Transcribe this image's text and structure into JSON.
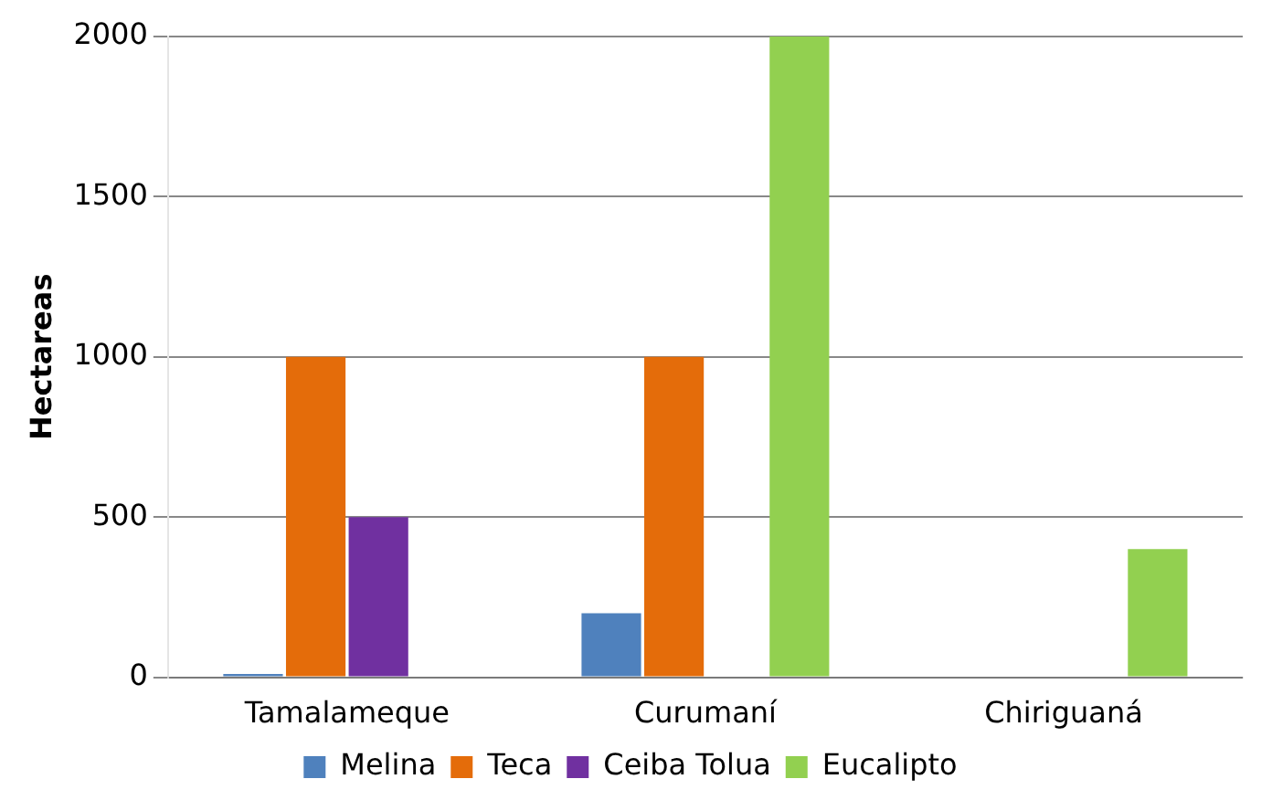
{
  "chart_data": {
    "type": "bar",
    "ylabel": "Hectareas",
    "categories": [
      "Tamalameque",
      "Curumaní",
      "Chiriguaná"
    ],
    "series": [
      {
        "name": "Melina",
        "color": "#4f81bd",
        "values": [
          10,
          200,
          null
        ]
      },
      {
        "name": "Teca",
        "color": "#e46c0a",
        "values": [
          1000,
          1000,
          null
        ]
      },
      {
        "name": "Ceiba Tolua",
        "color": "#7030a0",
        "values": [
          500,
          null,
          null
        ]
      },
      {
        "name": "Eucalipto",
        "color": "#92d050",
        "values": [
          null,
          2000,
          400
        ]
      }
    ],
    "ylim": [
      0,
      2000
    ],
    "yticks": [
      0,
      500,
      1000,
      1500,
      2000
    ],
    "grid": "y",
    "legend": "bottom"
  }
}
